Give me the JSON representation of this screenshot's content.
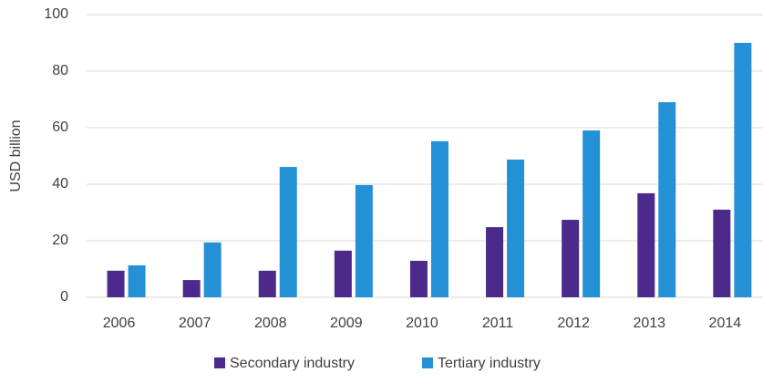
{
  "chart_data": {
    "type": "bar",
    "y_label": "USD billion",
    "categories": [
      "2006",
      "2007",
      "2008",
      "2009",
      "2010",
      "2011",
      "2012",
      "2013",
      "2014"
    ],
    "series": [
      {
        "name": "Secondary industry",
        "color": "#4b2a8c",
        "values": [
          9.4,
          6.1,
          9.4,
          16.5,
          12.9,
          24.8,
          27.4,
          36.8,
          31
        ]
      },
      {
        "name": "Tertiary industry",
        "color": "#2490d6",
        "values": [
          11.3,
          19.4,
          46.1,
          39.7,
          55.2,
          48.7,
          59,
          69,
          90
        ]
      }
    ],
    "ylim": [
      0,
      100
    ],
    "yticks": [
      0,
      20,
      40,
      60,
      80,
      100
    ],
    "grid": true,
    "legend": "bottom"
  }
}
